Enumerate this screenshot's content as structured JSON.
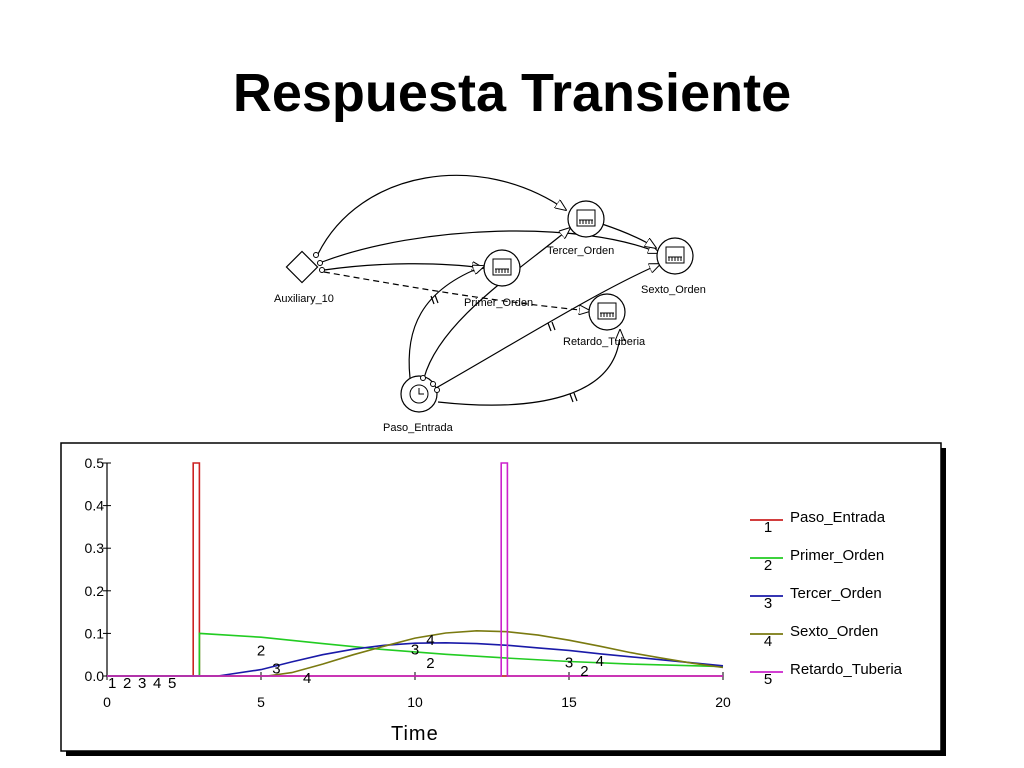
{
  "title": "Respuesta Transiente",
  "diagram": {
    "nodes": [
      {
        "id": "auxiliary",
        "label": "Auxiliary_10",
        "kind": "auxiliary-diamond"
      },
      {
        "id": "tercer",
        "label": "Tercer_Orden",
        "kind": "stock-icon"
      },
      {
        "id": "primer",
        "label": "Primer_Orden",
        "kind": "stock-icon"
      },
      {
        "id": "sexto",
        "label": "Sexto_Orden",
        "kind": "stock-icon"
      },
      {
        "id": "retardo",
        "label": "Retardo_Tuberia",
        "kind": "stock-icon"
      },
      {
        "id": "paso",
        "label": "Paso_Entrada",
        "kind": "clock-icon"
      }
    ]
  },
  "chart_data": {
    "type": "line",
    "xlabel": "Time",
    "ylabel": "",
    "xlim": [
      0,
      20
    ],
    "ylim": [
      0,
      0.5
    ],
    "xticks": [
      "0",
      "5",
      "10",
      "15",
      "20"
    ],
    "yticks": [
      "0.0",
      "0.1",
      "0.2",
      "0.3",
      "0.4",
      "0.5"
    ],
    "legend_position": "right",
    "baseline_markers": [
      "1",
      "2",
      "3",
      "4",
      "5"
    ],
    "series": [
      {
        "name": "Paso_Entrada",
        "marker": "1",
        "color": "#cc2222",
        "x": [
          0,
          2.8,
          2.8,
          3.0,
          3.0,
          20
        ],
        "y": [
          0,
          0,
          0.5,
          0.5,
          0,
          0
        ]
      },
      {
        "name": "Primer_Orden",
        "marker": "2",
        "color": "#22cc22",
        "x": [
          0,
          3.0,
          3.0,
          5,
          7,
          9,
          11,
          13,
          15,
          17,
          20
        ],
        "y": [
          0,
          0,
          0.1,
          0.091,
          0.076,
          0.062,
          0.051,
          0.042,
          0.034,
          0.028,
          0.022
        ]
      },
      {
        "name": "Tercer_Orden",
        "marker": "3",
        "color": "#1a1aa8",
        "x": [
          0,
          3.6,
          5,
          6,
          7,
          8,
          9,
          10,
          11,
          12,
          13,
          14,
          15,
          16,
          17,
          18,
          19,
          20
        ],
        "y": [
          0,
          0,
          0.015,
          0.033,
          0.05,
          0.063,
          0.072,
          0.077,
          0.078,
          0.076,
          0.072,
          0.066,
          0.06,
          0.052,
          0.045,
          0.038,
          0.031,
          0.024
        ]
      },
      {
        "name": "Sexto_Orden",
        "marker": "4",
        "color": "#7a7a10",
        "x": [
          0,
          5.2,
          6,
          7,
          8,
          9,
          10,
          11,
          12,
          13,
          14,
          15,
          16,
          17,
          18,
          19,
          20
        ],
        "y": [
          0,
          0,
          0.008,
          0.028,
          0.05,
          0.07,
          0.089,
          0.101,
          0.106,
          0.104,
          0.096,
          0.084,
          0.07,
          0.055,
          0.042,
          0.03,
          0.02
        ]
      },
      {
        "name": "Retardo_Tuberia",
        "marker": "5",
        "color": "#cc22cc",
        "x": [
          0,
          12.8,
          12.8,
          13.0,
          13.0,
          20
        ],
        "y": [
          0,
          0,
          0.5,
          0.5,
          0,
          0
        ]
      }
    ],
    "curve_markers": [
      {
        "series": 1,
        "x": 5,
        "y": 0.06
      },
      {
        "series": 1,
        "x": 10.5,
        "y": 0.03
      },
      {
        "series": 1,
        "x": 15.5,
        "y": 0.012
      },
      {
        "series": 2,
        "x": 5.5,
        "y": 0.018
      },
      {
        "series": 2,
        "x": 10,
        "y": 0.062
      },
      {
        "series": 2,
        "x": 15,
        "y": 0.032
      },
      {
        "series": 3,
        "x": 6.5,
        "y": -0.005
      },
      {
        "series": 3,
        "x": 10.5,
        "y": 0.085
      },
      {
        "series": 3,
        "x": 16,
        "y": 0.035
      }
    ]
  }
}
